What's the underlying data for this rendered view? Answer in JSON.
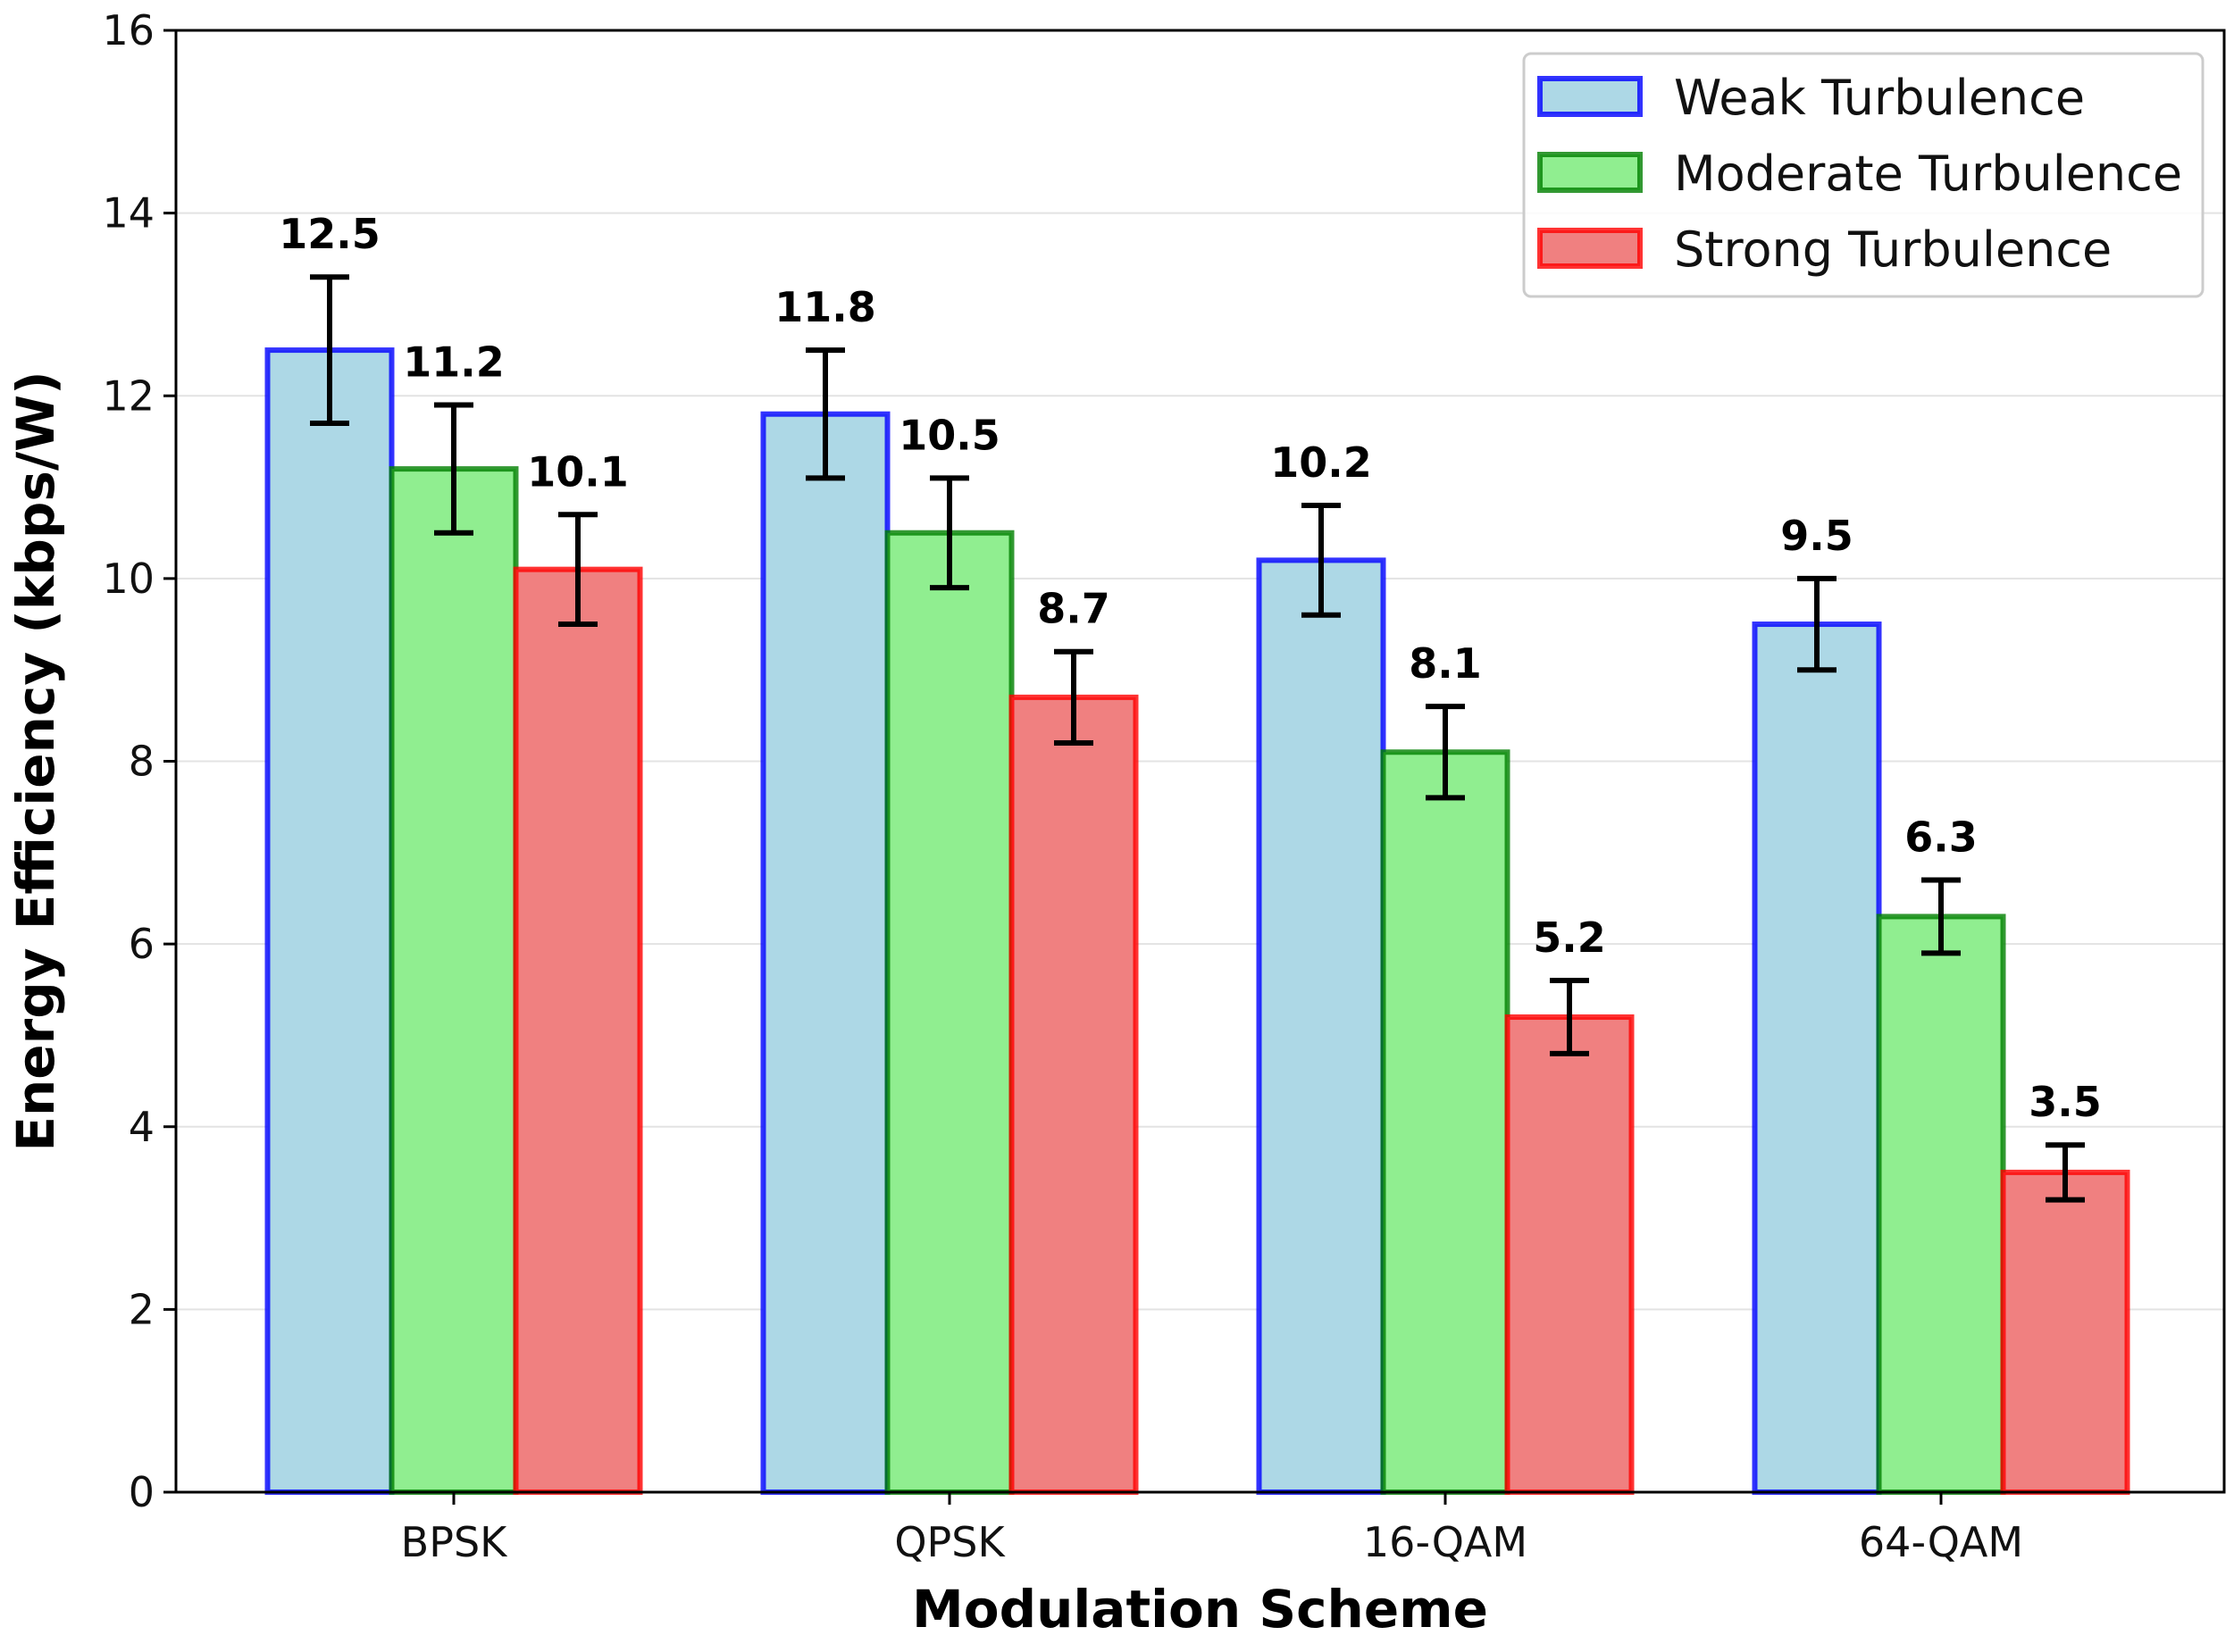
{
  "chart_data": {
    "type": "bar",
    "title": "",
    "xlabel": "Modulation Scheme",
    "ylabel": "Energy Efficiency (kbps/W)",
    "categories": [
      "BPSK",
      "QPSK",
      "16-QAM",
      "64-QAM"
    ],
    "ylim": [
      0,
      16
    ],
    "yticks": [
      0,
      2,
      4,
      6,
      8,
      10,
      12,
      14,
      16
    ],
    "ytick_labels": [
      "0",
      "2",
      "4",
      "6",
      "8",
      "10",
      "12",
      "14",
      "16"
    ],
    "grid": "horizontal",
    "legend_position": "top-right",
    "series": [
      {
        "name": "Weak Turbulence",
        "values": [
          12.5,
          11.8,
          10.2,
          9.5
        ],
        "errors": [
          0.8,
          0.7,
          0.6,
          0.5
        ],
        "labels": [
          "12.5",
          "11.8",
          "10.2",
          "9.5"
        ],
        "fill": "#add8e6",
        "edge": "#0000ff"
      },
      {
        "name": "Moderate Turbulence",
        "values": [
          11.2,
          10.5,
          8.1,
          6.3
        ],
        "errors": [
          0.7,
          0.6,
          0.5,
          0.4
        ],
        "labels": [
          "11.2",
          "10.5",
          "8.1",
          "6.3"
        ],
        "fill": "#90ee90",
        "edge": "#008000"
      },
      {
        "name": "Strong Turbulence",
        "values": [
          10.1,
          8.7,
          5.2,
          3.5
        ],
        "errors": [
          0.6,
          0.5,
          0.4,
          0.3
        ],
        "labels": [
          "10.1",
          "8.7",
          "5.2",
          "3.5"
        ],
        "fill": "#f08080",
        "edge": "#ff0000"
      }
    ]
  }
}
